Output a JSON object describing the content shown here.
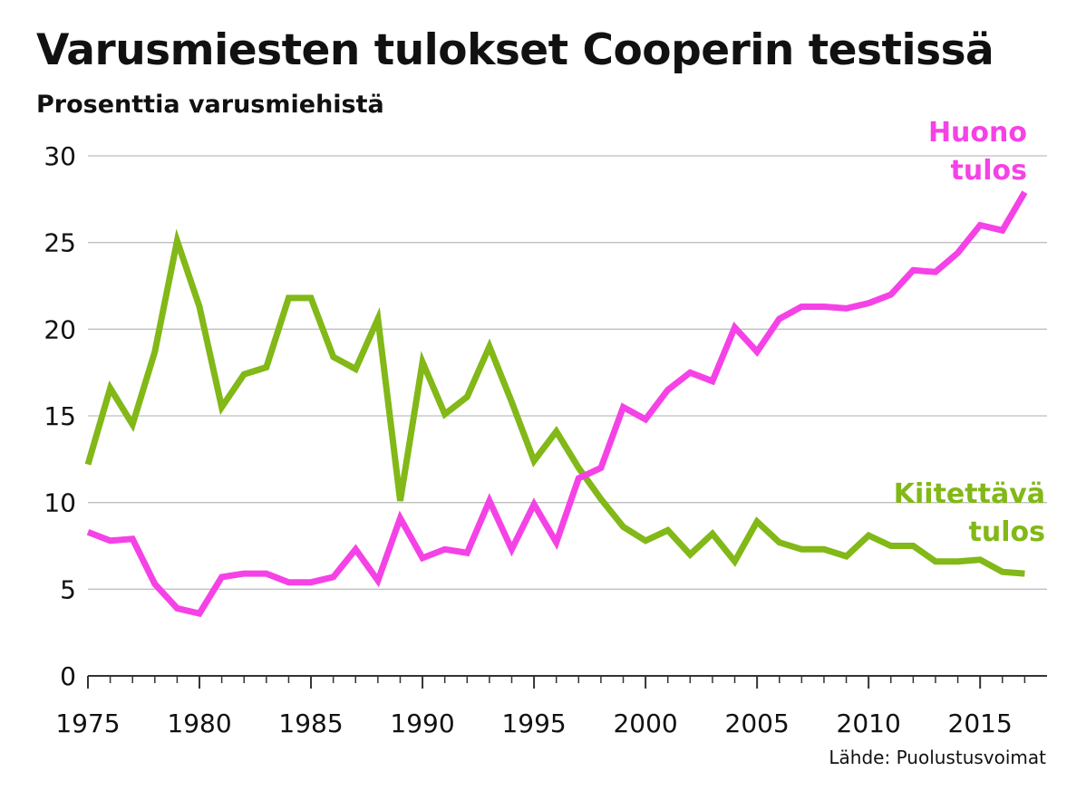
{
  "title": "Varusmiesten tulokset Cooperin testissä",
  "subtitle": "Prosenttia varusmiehistä",
  "source": "Lähde: Puolustusvoimat",
  "colors": {
    "huono": "#f542e6",
    "kiitettava": "#82b817",
    "grid": "#bfbfbf",
    "axis": "#333333"
  },
  "chart_data": {
    "type": "line",
    "title": "Varusmiesten tulokset Cooperin testissä",
    "ylabel": "Prosenttia varusmiehistä",
    "xlabel": "",
    "xlim": [
      1975,
      2018
    ],
    "ylim": [
      0,
      30
    ],
    "yticks": [
      0,
      5,
      10,
      15,
      20,
      25,
      30
    ],
    "xticks": [
      1975,
      1980,
      1985,
      1990,
      1995,
      2000,
      2005,
      2010,
      2015
    ],
    "grid": true,
    "x": [
      1975,
      1976,
      1977,
      1978,
      1979,
      1980,
      1981,
      1982,
      1983,
      1984,
      1985,
      1986,
      1987,
      1988,
      1989,
      1990,
      1991,
      1992,
      1993,
      1994,
      1995,
      1996,
      1997,
      1998,
      1999,
      2000,
      2001,
      2002,
      2003,
      2004,
      2005,
      2006,
      2007,
      2008,
      2009,
      2010,
      2011,
      2012,
      2013,
      2014,
      2015,
      2016,
      2017
    ],
    "series": [
      {
        "name": "Huono tulos",
        "label_lines": [
          "Huono",
          "tulos"
        ],
        "color": "#f542e6",
        "values": [
          8.3,
          7.8,
          7.9,
          5.3,
          3.9,
          3.6,
          5.7,
          5.9,
          5.9,
          5.4,
          5.4,
          5.7,
          7.3,
          5.5,
          9.1,
          6.8,
          7.3,
          7.1,
          10.1,
          7.3,
          9.9,
          7.7,
          11.4,
          12.0,
          15.5,
          14.8,
          16.5,
          17.5,
          17.0,
          20.1,
          18.7,
          20.6,
          21.3,
          21.3,
          21.2,
          21.5,
          22.0,
          23.4,
          23.3,
          24.4,
          26.0,
          25.7,
          27.9
        ]
      },
      {
        "name": "Kiitettävä tulos",
        "label_lines": [
          "Kiitettävä",
          "tulos"
        ],
        "color": "#82b817",
        "values": [
          12.2,
          16.6,
          14.5,
          18.7,
          25.1,
          21.3,
          15.5,
          17.4,
          17.8,
          21.8,
          21.8,
          18.4,
          17.7,
          20.6,
          10.1,
          18.1,
          15.1,
          16.1,
          19.0,
          15.8,
          12.4,
          14.1,
          12.0,
          10.2,
          8.6,
          7.8,
          8.4,
          7.0,
          8.2,
          6.6,
          8.9,
          7.7,
          7.3,
          7.3,
          6.9,
          8.1,
          7.5,
          7.5,
          6.6,
          6.6,
          6.7,
          6.0,
          5.9
        ]
      }
    ]
  }
}
